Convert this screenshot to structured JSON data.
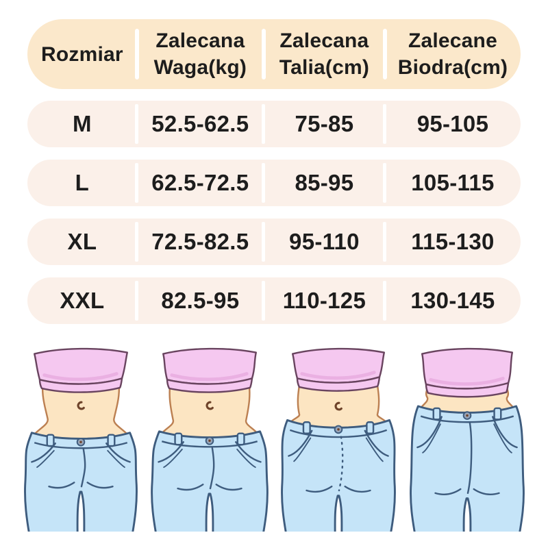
{
  "table": {
    "columns": [
      "Rozmiar",
      "Zalecana\nWaga(kg)",
      "Zalecana\nTalia(cm)",
      "Zalecane\nBiodra(cm)"
    ],
    "rows": [
      {
        "size": "M",
        "weight": "52.5-62.5",
        "waist": "75-85",
        "hips": "95-105"
      },
      {
        "size": "L",
        "weight": "62.5-72.5",
        "waist": "85-95",
        "hips": "105-115"
      },
      {
        "size": "XL",
        "weight": "72.5-82.5",
        "waist": "95-110",
        "hips": "115-130"
      },
      {
        "size": "XXL",
        "weight": "82.5-95",
        "waist": "110-125",
        "hips": "130-145"
      }
    ]
  },
  "chart_data": {
    "type": "table",
    "title": "",
    "columns": [
      "Rozmiar",
      "Zalecana Waga(kg)",
      "Zalecana Talia(cm)",
      "Zalecane Biodra(cm)"
    ],
    "rows": [
      [
        "M",
        "52.5-62.5",
        "75-85",
        "95-105"
      ],
      [
        "L",
        "62.5-72.5",
        "85-95",
        "105-115"
      ],
      [
        "XL",
        "72.5-82.5",
        "95-110",
        "115-130"
      ],
      [
        "XXL",
        "82.5-95",
        "110-125",
        "130-145"
      ]
    ]
  },
  "figures": [
    {
      "name": "torso-illustration-size-m"
    },
    {
      "name": "torso-illustration-size-l"
    },
    {
      "name": "torso-illustration-size-xl"
    },
    {
      "name": "torso-illustration-size-xxl"
    }
  ],
  "colors": {
    "header_bg": "#fbe8cb",
    "row_bg": "#fbf0e9",
    "text": "#1d1d1d",
    "divider": "#ffffff",
    "top_pink": "#f5c8f0",
    "top_shadow": "#e7abdf",
    "top_outline": "#69445f",
    "skin": "#fce5c2",
    "skin_outline": "#bc8052",
    "navel": "#6e432a",
    "jeans": "#c5e4f8",
    "jeans_outline": "#3e5c7e",
    "button": "#98a5b8"
  }
}
